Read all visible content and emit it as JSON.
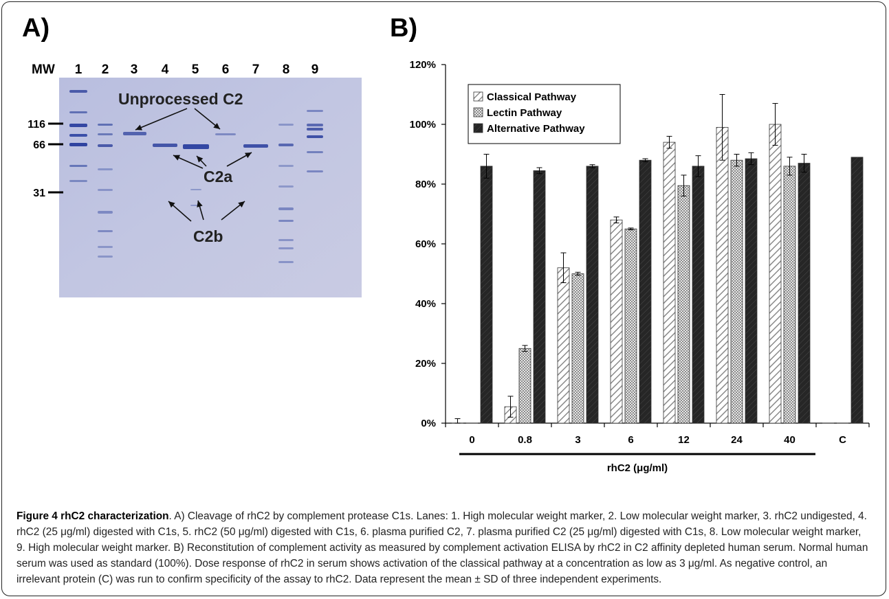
{
  "panels": {
    "a": "A)",
    "b": "B)"
  },
  "gel": {
    "mw_label": "MW",
    "lanes": [
      "1",
      "2",
      "3",
      "4",
      "5",
      "6",
      "7",
      "8",
      "9"
    ],
    "mw_markers": [
      "116",
      "66",
      "31"
    ],
    "annotations": {
      "unprocessed": "Unprocessed C2",
      "c2a": "C2a",
      "c2b": "C2b"
    }
  },
  "chart_data": {
    "type": "bar",
    "categories": [
      "0",
      "0.8",
      "3",
      "6",
      "12",
      "24",
      "40",
      "C"
    ],
    "xlabel": "rhC2 (μg/ml)",
    "ylabel": "",
    "ylim": [
      0,
      120
    ],
    "yticks": [
      "0%",
      "20%",
      "40%",
      "60%",
      "80%",
      "100%",
      "120%"
    ],
    "grid": false,
    "legend_position": "top-left",
    "series": [
      {
        "name": "Classical Pathway",
        "pattern": "diagonal-hatch",
        "values": [
          0,
          5.5,
          52,
          68,
          94,
          99,
          100,
          0
        ],
        "errors": [
          1.5,
          3.5,
          5,
          1,
          2,
          11,
          7,
          0
        ]
      },
      {
        "name": "Lectin Pathway",
        "pattern": "crosshatch",
        "values": [
          0,
          25,
          50,
          65,
          79.5,
          88,
          86,
          0
        ],
        "errors": [
          0,
          1,
          0.5,
          0.3,
          3.5,
          2,
          3,
          0
        ]
      },
      {
        "name": "Alternative Pathway",
        "pattern": "dark",
        "values": [
          86,
          84.5,
          86,
          88,
          86,
          88.5,
          87,
          89
        ],
        "errors": [
          4,
          1,
          0.5,
          0.5,
          3.5,
          2,
          3,
          0
        ]
      }
    ]
  },
  "caption": {
    "title": "Figure 4 rhC2 characterization",
    "text": ". A) Cleavage of rhC2 by complement protease C1s. Lanes: 1. High molecular weight marker, 2. Low molecular weight marker, 3. rhC2 undigested, 4. rhC2 (25 μg/ml) digested with C1s, 5. rhC2 (50 μg/ml) digested with C1s, 6. plasma purified C2, 7. plasma purified C2 (25 μg/ml) digested with C1s, 8. Low molecular weight marker, 9. High molecular weight marker. B) Reconstitution of complement activity as measured by complement activation ELISA by rhC2 in C2 affinity depleted human serum. Normal human serum was used as standard (100%). Dose response of rhC2 in serum shows activation of the classical pathway at a concentration as low as 3 μg/ml. As negative control, an irrelevant protein (C) was run to confirm specificity of the assay to rhC2. Data represent the mean ± SD of three independent experiments."
  }
}
